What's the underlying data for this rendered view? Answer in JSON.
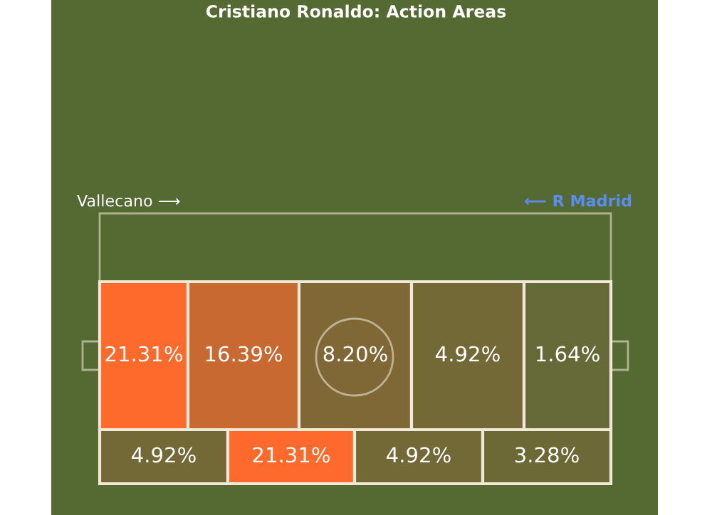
{
  "chart_data": {
    "type": "other",
    "title": "Cristiano Ronaldo: Action Areas",
    "values": [
      21.31,
      16.39,
      8.2,
      4.92,
      1.64,
      4.92,
      21.31,
      4.92,
      3.28
    ],
    "value_labels": [
      "21.31%",
      "16.39%",
      "8.20%",
      "4.92%",
      "1.64%",
      "4.92%",
      "21.31%",
      "4.92%",
      "3.28%"
    ],
    "annotations": [
      "Vallecano ⟶",
      "⟵ R Madrid"
    ]
  }
}
